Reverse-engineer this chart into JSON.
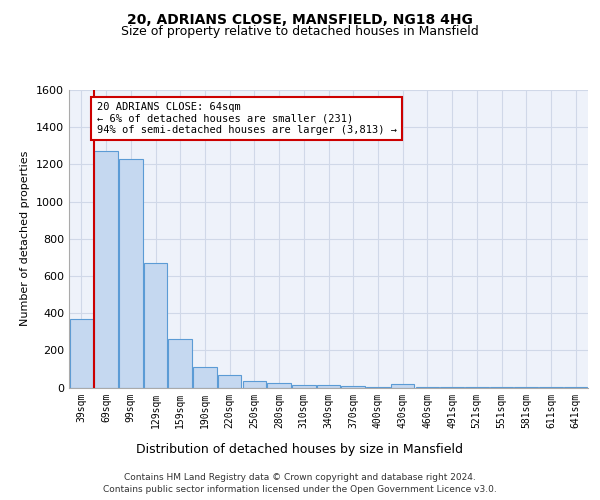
{
  "title1": "20, ADRIANS CLOSE, MANSFIELD, NG18 4HG",
  "title2": "Size of property relative to detached houses in Mansfield",
  "xlabel": "Distribution of detached houses by size in Mansfield",
  "ylabel": "Number of detached properties",
  "categories": [
    "39sqm",
    "69sqm",
    "99sqm",
    "129sqm",
    "159sqm",
    "190sqm",
    "220sqm",
    "250sqm",
    "280sqm",
    "310sqm",
    "340sqm",
    "370sqm",
    "400sqm",
    "430sqm",
    "460sqm",
    "491sqm",
    "521sqm",
    "551sqm",
    "581sqm",
    "611sqm",
    "641sqm"
  ],
  "values": [
    370,
    1270,
    1230,
    670,
    260,
    110,
    65,
    35,
    25,
    15,
    12,
    8,
    5,
    20,
    4,
    4,
    3,
    1,
    1,
    1,
    1
  ],
  "bar_color": "#c5d8f0",
  "bar_edge_color": "#5b9bd5",
  "annotation_text": "20 ADRIANS CLOSE: 64sqm\n← 6% of detached houses are smaller (231)\n94% of semi-detached houses are larger (3,813) →",
  "annotation_box_color": "#ffffff",
  "annotation_box_edge": "#cc0000",
  "ylim": [
    0,
    1600
  ],
  "yticks": [
    0,
    200,
    400,
    600,
    800,
    1000,
    1200,
    1400,
    1600
  ],
  "footer1": "Contains HM Land Registry data © Crown copyright and database right 2024.",
  "footer2": "Contains public sector information licensed under the Open Government Licence v3.0.",
  "grid_color": "#d0d8e8",
  "bg_color": "#eef2fa"
}
